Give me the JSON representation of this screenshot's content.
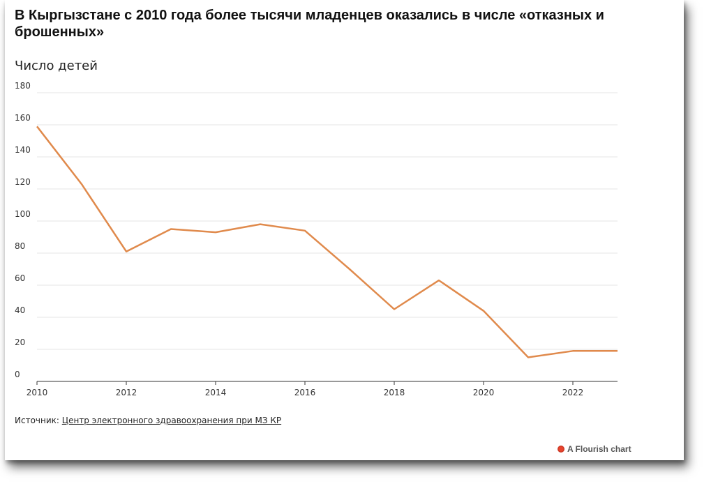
{
  "title": "В Кыргызстане с 2010 года более тысячи младенцев оказались в числе «отказных и брошенных»",
  "subtitle": "Число детей",
  "source": {
    "label": "Источник: ",
    "link_text": "Центр электронного здравоохранения при МЗ КР"
  },
  "branding": {
    "text": "A Flourish chart",
    "icon": "flourish-logo-icon"
  },
  "colors": {
    "line": "#e08a4c",
    "grid": "#e6e6e6"
  },
  "chart_data": {
    "type": "line",
    "title": "В Кыргызстане с 2010 года более тысячи младенцев оказались в числе «отказных и брошенных»",
    "subtitle": "Число детей",
    "xlabel": "",
    "ylabel": "",
    "x": [
      2010,
      2011,
      2012,
      2013,
      2014,
      2015,
      2016,
      2017,
      2018,
      2019,
      2020,
      2021,
      2022,
      2023
    ],
    "values": [
      159,
      123,
      81,
      95,
      93,
      98,
      94,
      70,
      45,
      63,
      44,
      15,
      19,
      19
    ],
    "xlim": [
      2010,
      2023
    ],
    "ylim": [
      0,
      180
    ],
    "x_ticks": [
      "2010",
      "2012",
      "2014",
      "2016",
      "2018",
      "2020",
      "2022"
    ],
    "y_ticks": [
      "0",
      "20",
      "40",
      "60",
      "80",
      "100",
      "120",
      "140",
      "160",
      "180"
    ],
    "grid": true,
    "legend": "none"
  }
}
